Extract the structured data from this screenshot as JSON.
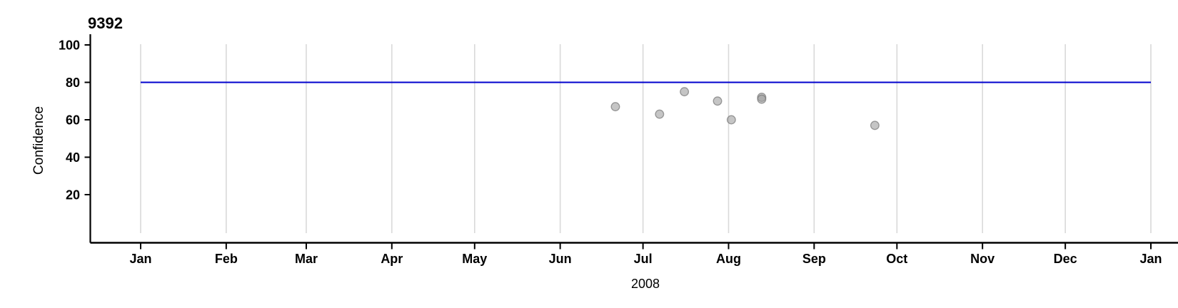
{
  "chart_data": {
    "type": "scatter",
    "title": "9392",
    "xlabel": "2008",
    "ylabel": "Confidence",
    "x_axis": {
      "unit": "day_of_year_2008",
      "range_days": [
        0,
        366
      ],
      "tick_labels": [
        "Jan",
        "Feb",
        "Mar",
        "Apr",
        "May",
        "Jun",
        "Jul",
        "Aug",
        "Sep",
        "Oct",
        "Nov",
        "Dec",
        "Jan"
      ],
      "tick_days": [
        0,
        31,
        60,
        91,
        121,
        152,
        182,
        213,
        244,
        274,
        305,
        335,
        366
      ],
      "grid": true
    },
    "y_axis": {
      "ticks": [
        20,
        40,
        60,
        80,
        100
      ],
      "range": [
        -5,
        106
      ],
      "grid": false
    },
    "reference_line": {
      "y": 80,
      "span_days": [
        0,
        366
      ],
      "color": "#0000cd"
    },
    "points": [
      {
        "date": "2008-06-21",
        "day": 172,
        "value": 67
      },
      {
        "date": "2008-07-07",
        "day": 188,
        "value": 63
      },
      {
        "date": "2008-07-16",
        "day": 197,
        "value": 75
      },
      {
        "date": "2008-07-28",
        "day": 209,
        "value": 70
      },
      {
        "date": "2008-08-02",
        "day": 214,
        "value": 60
      },
      {
        "date": "2008-08-13",
        "day": 225,
        "value": 72
      },
      {
        "date": "2008-08-13",
        "day": 225,
        "value": 71
      },
      {
        "date": "2008-09-23",
        "day": 266,
        "value": 57
      }
    ],
    "point_style": {
      "radius": 5.8,
      "fill": "#9e9e9e",
      "fill_opacity": 0.6,
      "stroke": "#6f6f6f",
      "stroke_opacity": 0.65,
      "stroke_width": 1.3
    },
    "colors": {
      "background": "#ffffff",
      "grid": "#d9d9d9",
      "axis": "#000000",
      "tick_label": "#000000",
      "reference": "#0000cd"
    },
    "legend": null
  }
}
